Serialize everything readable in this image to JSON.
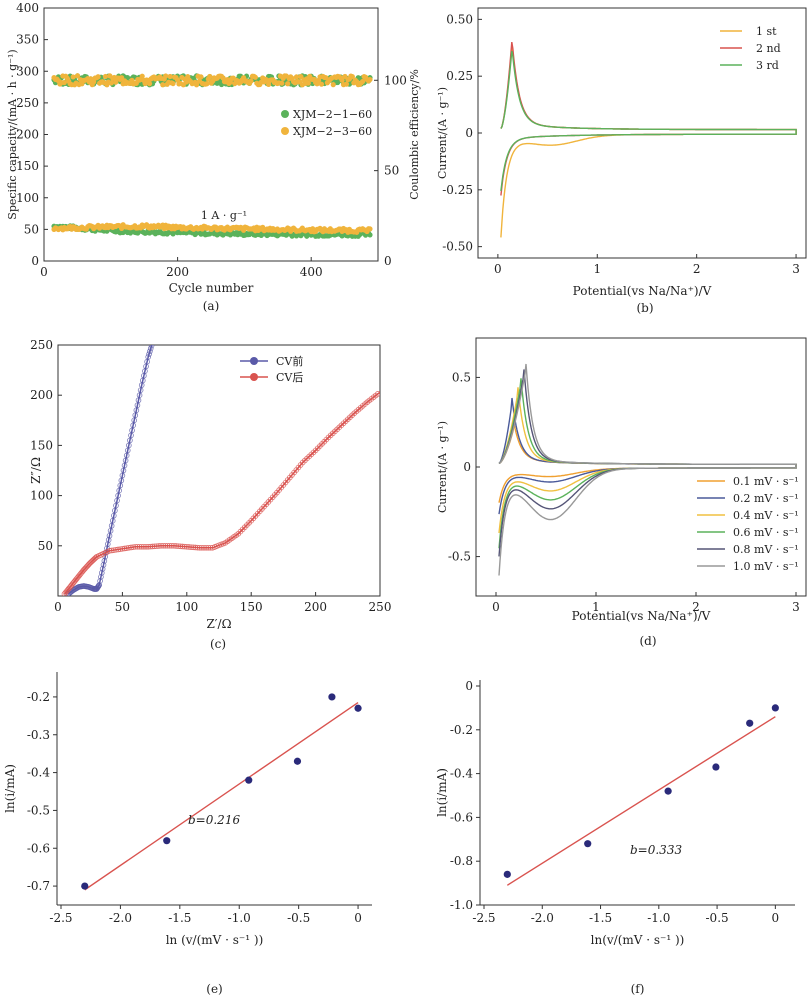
{
  "chart_data": [
    {
      "type": "scatter",
      "panel": "(a)",
      "xlabel": "Cycle number",
      "ylabel": "Specific capacity/(mA · h · g⁻¹)",
      "y2label": "Coulombic efficiency/%",
      "xlim": [
        0,
        500
      ],
      "ylim": [
        0,
        400
      ],
      "y2lim": [
        0,
        140
      ],
      "xticks": [
        "0",
        "200",
        "400"
      ],
      "yticks": [
        "0",
        "50",
        "100",
        "150",
        "200",
        "250",
        "300",
        "350",
        "400"
      ],
      "y2ticks": [
        "0",
        "50",
        "100"
      ],
      "annotation": "1 A · g⁻¹",
      "legend_position": "center-right",
      "series": [
        {
          "name": "XJM−2−1−60",
          "color": "#5bb25b",
          "capacity": {
            "x": [
              15,
              100,
              200,
              300,
              400,
              490
            ],
            "y": [
              55,
              48,
              45,
              43,
              42,
              42
            ]
          },
          "efficiency": {
            "x": [
              15,
              490
            ],
            "y": [
              100,
              100
            ]
          }
        },
        {
          "name": "XJM−2−3−60",
          "color": "#f0b43c",
          "capacity": {
            "x": [
              15,
              100,
              150,
              200,
              300,
              400,
              490
            ],
            "y": [
              52,
              54,
              55,
              53,
              51,
              49,
              48
            ]
          },
          "efficiency": {
            "x": [
              15,
              490
            ],
            "y": [
              100,
              100
            ]
          }
        }
      ]
    },
    {
      "type": "line",
      "panel": "(b)",
      "xlabel": "Potential(vs Na/Na⁺)/V",
      "ylabel": "Current/(A · g⁻¹)",
      "xlim": [
        -0.2,
        3.1
      ],
      "ylim": [
        -0.55,
        0.55
      ],
      "xticks": [
        "0",
        "1",
        "2",
        "3"
      ],
      "yticks": [
        "-0.50",
        "-0.25",
        "0",
        "0.25",
        "0.50"
      ],
      "legend_position": "top-right",
      "series": [
        {
          "name": "1 st",
          "color": "#f0b43c",
          "peak": 0.38,
          "min": -0.48,
          "bump": 0.04
        },
        {
          "name": "2 nd",
          "color": "#d9534f",
          "peak": 0.4,
          "min": -0.3,
          "bump": 0.0
        },
        {
          "name": "3 rd",
          "color": "#5bb25b",
          "peak": 0.36,
          "min": -0.28,
          "bump": 0.0
        }
      ]
    },
    {
      "type": "line",
      "panel": "(c)",
      "xlabel": "Z′/Ω",
      "ylabel": "Z″/Ω",
      "xlim": [
        0,
        250
      ],
      "ylim": [
        0,
        250
      ],
      "xticks": [
        "0",
        "50",
        "100",
        "150",
        "200",
        "250"
      ],
      "yticks": [
        "50",
        "100",
        "150",
        "200",
        "250"
      ],
      "legend_position": "top-right",
      "series": [
        {
          "name": "CV前",
          "color": "#5a5aa8",
          "x": [
            8,
            12,
            16,
            20,
            24,
            28,
            30,
            32,
            36,
            40,
            45,
            50,
            55,
            60,
            65,
            70,
            74
          ],
          "y": [
            2,
            6,
            9,
            10,
            9,
            7,
            7,
            11,
            35,
            60,
            90,
            120,
            150,
            180,
            210,
            238,
            255
          ]
        },
        {
          "name": "CV后",
          "color": "#d9534f",
          "x": [
            5,
            10,
            15,
            20,
            25,
            30,
            40,
            50,
            60,
            70,
            80,
            90,
            100,
            110,
            120,
            130,
            140,
            150,
            160,
            170,
            180,
            190,
            200,
            210,
            220,
            230,
            240,
            250
          ],
          "y": [
            2,
            10,
            18,
            26,
            33,
            39,
            45,
            47,
            49,
            49,
            50,
            50,
            49,
            48,
            48,
            53,
            62,
            75,
            89,
            103,
            118,
            133,
            145,
            158,
            170,
            182,
            193,
            203
          ]
        }
      ]
    },
    {
      "type": "line",
      "panel": "(d)",
      "xlabel": "Potential(vs Na/Na⁺)/V",
      "ylabel": "Current/(A · g⁻¹)",
      "xlim": [
        -0.2,
        3.1
      ],
      "ylim": [
        -0.72,
        0.72
      ],
      "xticks": [
        "0",
        "1",
        "2",
        "3"
      ],
      "yticks": [
        "-0.5",
        "0",
        "0.5"
      ],
      "legend_position": "bottom-right",
      "series": [
        {
          "name": "0.1 mV · s⁻¹",
          "color": "#f0a030",
          "peak": 0.22,
          "peakx": 0.18,
          "min": -0.22,
          "bump": 0.04
        },
        {
          "name": "0.2 mV · s⁻¹",
          "color": "#4a5a9a",
          "peak": 0.36,
          "peakx": 0.16,
          "min": -0.28,
          "bump": 0.07
        },
        {
          "name": "0.4 mV · s⁻¹",
          "color": "#f0c040",
          "peak": 0.42,
          "peakx": 0.22,
          "min": -0.38,
          "bump": 0.12
        },
        {
          "name": "0.6 mV · s⁻¹",
          "color": "#5bb25b",
          "peak": 0.47,
          "peakx": 0.25,
          "min": -0.46,
          "bump": 0.17
        },
        {
          "name": "0.8 mV · s⁻¹",
          "color": "#555577",
          "peak": 0.52,
          "peakx": 0.28,
          "min": -0.5,
          "bump": 0.22
        },
        {
          "name": "1.0 mV · s⁻¹",
          "color": "#999999",
          "peak": 0.55,
          "peakx": 0.3,
          "min": -0.6,
          "bump": 0.28
        }
      ]
    },
    {
      "type": "scatter",
      "panel": "(e)",
      "xlabel": "ln (v/(mV · s⁻¹ ))",
      "ylabel": "ln(i/mA)",
      "xlim": [
        -2.5,
        0.05
      ],
      "ylim": [
        -0.75,
        -0.15
      ],
      "xticks": [
        "-2.5",
        "-2.0",
        "-1.5",
        "-1.0",
        "-0.5",
        "0"
      ],
      "yticks": [
        "-0.7",
        "-0.6",
        "-0.5",
        "-0.4",
        "-0.3",
        "-0.2"
      ],
      "annotation": "b=0.216",
      "points": {
        "x": [
          -2.3,
          -1.61,
          -0.92,
          -0.51,
          -0.22,
          0.0
        ],
        "y": [
          -0.7,
          -0.58,
          -0.42,
          -0.37,
          -0.2,
          -0.23
        ]
      },
      "fit": {
        "x": [
          -2.3,
          0.0
        ],
        "y": [
          -0.71,
          -0.215
        ]
      },
      "point_color": "#2a2a7a",
      "fit_color": "#d9534f"
    },
    {
      "type": "scatter",
      "panel": "(f)",
      "xlabel": "ln(v/(mV · s⁻¹ ))",
      "ylabel": "ln(i/mA)",
      "xlim": [
        -2.5,
        0.1
      ],
      "ylim": [
        -1.0,
        0.0
      ],
      "xticks": [
        "-2.5",
        "-2.0",
        "-1.5",
        "-1.0",
        "-0.5",
        "0"
      ],
      "yticks": [
        "-1.0",
        "-0.8",
        "-0.6",
        "-0.4",
        "-0.2",
        "0"
      ],
      "annotation": "b=0.333",
      "points": {
        "x": [
          -2.3,
          -1.61,
          -0.92,
          -0.51,
          -0.22,
          0.0
        ],
        "y": [
          -0.86,
          -0.72,
          -0.48,
          -0.37,
          -0.17,
          -0.1
        ]
      },
      "fit": {
        "x": [
          -2.3,
          0.0
        ],
        "y": [
          -0.91,
          -0.14
        ]
      },
      "point_color": "#2a2a7a",
      "fit_color": "#d9534f"
    }
  ]
}
